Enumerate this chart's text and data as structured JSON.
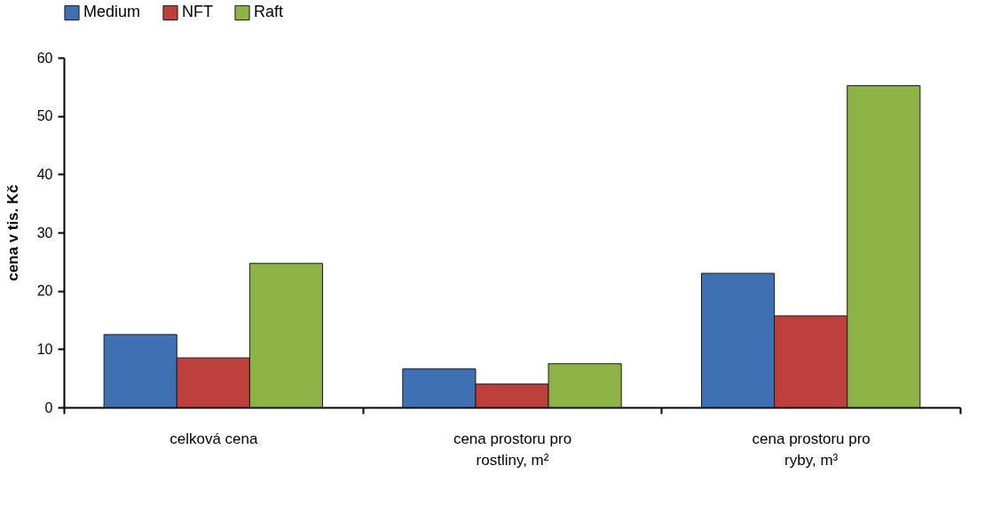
{
  "chart_data": {
    "type": "bar",
    "ylabel": "cena v tis. Kč",
    "categories": [
      "celková cena",
      "cena prostoru pro rostliny, m²",
      "cena prostoru pro ryby, m³"
    ],
    "series": [
      {
        "name": "Medium",
        "color": "#4070b4",
        "values": [
          12.5,
          6.6,
          23.0
        ]
      },
      {
        "name": "NFT",
        "color": "#bc3f3c",
        "values": [
          8.5,
          4.0,
          15.7
        ]
      },
      {
        "name": "Raft",
        "color": "#8db347",
        "values": [
          24.7,
          7.5,
          55.2
        ]
      }
    ],
    "ylim": [
      0,
      60
    ],
    "yticks": [
      0,
      10,
      20,
      30,
      40,
      50,
      60
    ],
    "grid": false,
    "legend": "top"
  }
}
